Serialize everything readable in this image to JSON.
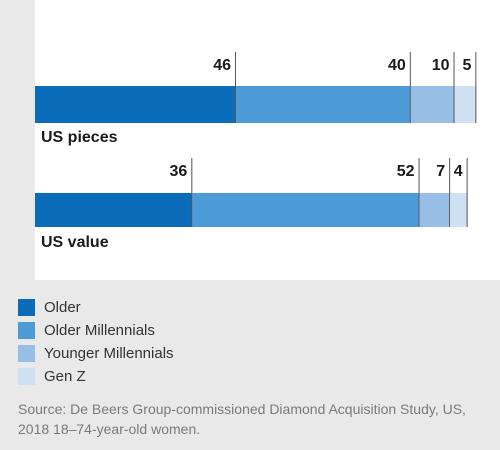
{
  "chart_data": {
    "type": "bar",
    "orientation": "horizontal",
    "stacked": true,
    "categories": [
      "US pieces",
      "US value"
    ],
    "series": [
      {
        "name": "Older",
        "color": "#0b6cba",
        "values": [
          46,
          36
        ]
      },
      {
        "name": "Older Millennials",
        "color": "#4d9bd6",
        "values": [
          40,
          52
        ]
      },
      {
        "name": "Younger Millennials",
        "color": "#97bfe6",
        "values": [
          10,
          7
        ]
      },
      {
        "name": "Gen Z",
        "color": "#cfe0f3",
        "values": [
          5,
          4
        ]
      }
    ],
    "legend_position": "bottom-left"
  },
  "source": "Source: De Beers Group-commissioned Diamond Acquisition Study, US, 2018 18–74-year-old women."
}
